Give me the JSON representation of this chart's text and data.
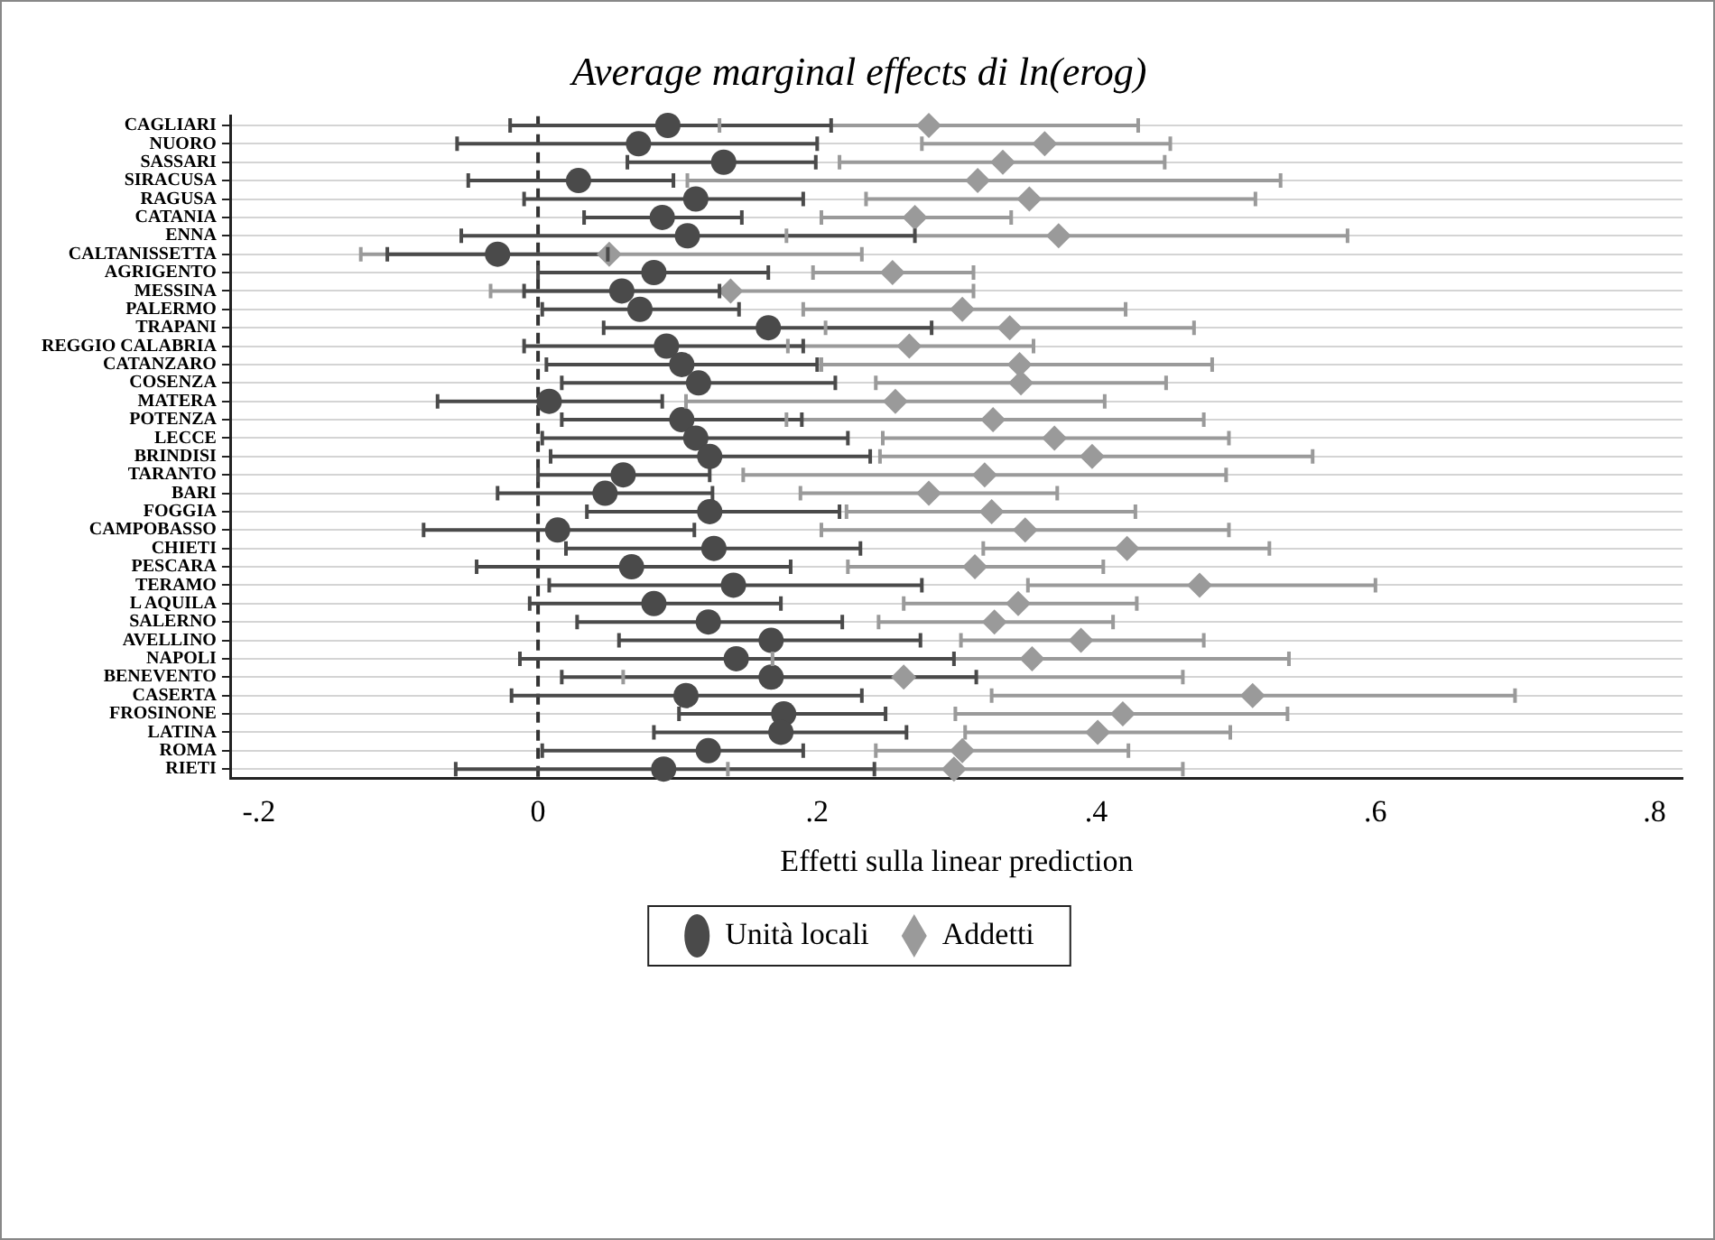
{
  "chart_data": {
    "type": "scatter",
    "orientation": "horizontal",
    "title": "Average marginal effects di ln(erog)",
    "xlabel": "Effetti sulla linear prediction",
    "categories": [
      "CAGLIARI",
      "NUORO",
      "SASSARI",
      "SIRACUSA",
      "RAGUSA",
      "CATANIA",
      "ENNA",
      "CALTANISSETTA",
      "AGRIGENTO",
      "MESSINA",
      "PALERMO",
      "TRAPANI",
      "REGGIO CALABRIA",
      "CATANZARO",
      "COSENZA",
      "MATERA",
      "POTENZA",
      "LECCE",
      "BRINDISI",
      "TARANTO",
      "BARI",
      "FOGGIA",
      "CAMPOBASSO",
      "CHIETI",
      "PESCARA",
      "TERAMO",
      "L AQUILA",
      "SALERNO",
      "AVELLINO",
      "NAPOLI",
      "BENEVENTO",
      "CASERTA",
      "FROSINONE",
      "LATINA",
      "ROMA",
      "RIETI"
    ],
    "xlim": [
      -0.22,
      0.82
    ],
    "xticks": [
      {
        "value": -0.2,
        "label": "-.2"
      },
      0,
      {
        "value": 0.2,
        "label": ".2"
      },
      {
        "value": 0.4,
        "label": ".4"
      },
      {
        "value": 0.6,
        "label": ".6"
      },
      {
        "value": 0.8,
        "label": ".8"
      }
    ],
    "grid": "y",
    "legend": "bottom",
    "ref_lines": [
      {
        "axis": "x",
        "value": 0,
        "line_style": "dashed",
        "color": "#333333"
      }
    ],
    "series": [
      {
        "name": "Unità locali",
        "color": "#4a4a4a",
        "marker": "circle",
        "values": [
          0.093,
          0.072,
          0.133,
          0.029,
          0.113,
          0.089,
          0.107,
          -0.029,
          0.083,
          0.06,
          0.073,
          0.165,
          0.092,
          0.103,
          0.115,
          0.008,
          0.103,
          0.113,
          0.123,
          0.061,
          0.048,
          0.123,
          0.014,
          0.126,
          0.067,
          0.14,
          0.083,
          0.122,
          0.167,
          0.142,
          0.167,
          0.106,
          0.176,
          0.174,
          0.122,
          0.09
        ],
        "errors": [
          [
            -0.02,
            0.21
          ],
          [
            -0.058,
            0.2
          ],
          [
            0.064,
            0.199
          ],
          [
            -0.05,
            0.097
          ],
          [
            -0.01,
            0.19
          ],
          [
            0.033,
            0.146
          ],
          [
            -0.055,
            0.27
          ],
          [
            -0.108,
            0.05
          ],
          [
            0,
            0.165
          ],
          [
            -0.01,
            0.13
          ],
          [
            0.003,
            0.144
          ],
          [
            0.047,
            0.282
          ],
          [
            -0.01,
            0.19
          ],
          [
            0.006,
            0.2
          ],
          [
            0.017,
            0.213
          ],
          [
            -0.072,
            0.089
          ],
          [
            0.017,
            0.189
          ],
          [
            0.003,
            0.222
          ],
          [
            0.009,
            0.238
          ],
          [
            0,
            0.123
          ],
          [
            -0.029,
            0.125
          ],
          [
            0.035,
            0.216
          ],
          [
            -0.082,
            0.112
          ],
          [
            0.02,
            0.231
          ],
          [
            -0.044,
            0.181
          ],
          [
            0.008,
            0.275
          ],
          [
            -0.006,
            0.174
          ],
          [
            0.028,
            0.218
          ],
          [
            0.058,
            0.274
          ],
          [
            -0.013,
            0.298
          ],
          [
            0.017,
            0.314
          ],
          [
            -0.019,
            0.232
          ],
          [
            0.101,
            0.249
          ],
          [
            0.083,
            0.264
          ],
          [
            0.003,
            0.19
          ],
          [
            -0.059,
            0.241
          ]
        ]
      },
      {
        "name": "Addetti",
        "color": "#9a9a9a",
        "marker": "diamond",
        "values": [
          0.28,
          0.363,
          0.333,
          0.315,
          0.352,
          0.27,
          0.373,
          0.051,
          0.254,
          0.138,
          0.304,
          0.338,
          0.266,
          0.345,
          0.346,
          0.256,
          0.326,
          0.37,
          0.397,
          0.32,
          0.28,
          0.325,
          0.349,
          0.422,
          0.313,
          0.474,
          0.344,
          0.327,
          0.389,
          0.354,
          0.262,
          0.512,
          0.419,
          0.401,
          0.304,
          0.298
        ],
        "errors": [
          [
            0.13,
            0.43
          ],
          [
            0.275,
            0.453
          ],
          [
            0.216,
            0.449
          ],
          [
            0.107,
            0.532
          ],
          [
            0.235,
            0.514
          ],
          [
            0.203,
            0.339
          ],
          [
            0.178,
            0.58
          ],
          [
            -0.127,
            0.232
          ],
          [
            0.197,
            0.312
          ],
          [
            -0.034,
            0.312
          ],
          [
            0.19,
            0.421
          ],
          [
            0.206,
            0.47
          ],
          [
            0.179,
            0.355
          ],
          [
            0.203,
            0.483
          ],
          [
            0.242,
            0.45
          ],
          [
            0.106,
            0.406
          ],
          [
            0.178,
            0.477
          ],
          [
            0.247,
            0.495
          ],
          [
            0.245,
            0.555
          ],
          [
            0.147,
            0.493
          ],
          [
            0.188,
            0.372
          ],
          [
            0.221,
            0.428
          ],
          [
            0.203,
            0.495
          ],
          [
            0.319,
            0.524
          ],
          [
            0.222,
            0.405
          ],
          [
            0.351,
            0.6
          ],
          [
            0.262,
            0.429
          ],
          [
            0.244,
            0.412
          ],
          [
            0.303,
            0.477
          ],
          [
            0.168,
            0.538
          ],
          [
            0.061,
            0.462
          ],
          [
            0.325,
            0.7
          ],
          [
            0.299,
            0.537
          ],
          [
            0.306,
            0.496
          ],
          [
            0.242,
            0.423
          ],
          [
            0.136,
            0.462
          ]
        ]
      }
    ]
  }
}
